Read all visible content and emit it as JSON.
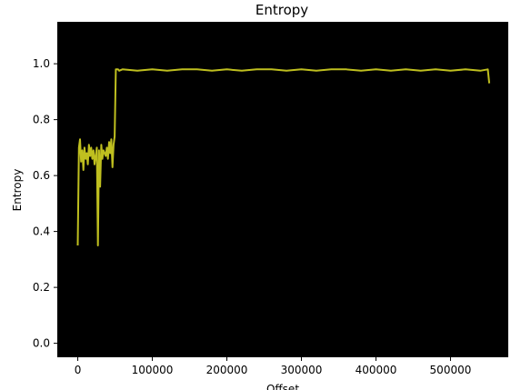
{
  "chart_data": {
    "type": "line",
    "title": "Entropy",
    "xlabel": "Offset",
    "ylabel": "Entropy",
    "xlim": [
      -27500,
      577500
    ],
    "ylim": [
      -0.05,
      1.15
    ],
    "xticks": [
      0,
      100000,
      200000,
      300000,
      400000,
      500000
    ],
    "xtick_labels": [
      "0",
      "100000",
      "200000",
      "300000",
      "400000",
      "500000"
    ],
    "yticks": [
      0.0,
      0.2,
      0.4,
      0.6,
      0.8,
      1.0
    ],
    "ytick_labels": [
      "0.0",
      "0.2",
      "0.4",
      "0.6",
      "0.8",
      "1.0"
    ],
    "background_color": "#000000",
    "line_color": "#bfbf1f",
    "grid": false,
    "series": [
      {
        "x": [
          0,
          1500,
          3000,
          4500,
          6000,
          7500,
          9000,
          10500,
          12000,
          13500,
          15000,
          16500,
          18000,
          19500,
          21000,
          22500,
          24000,
          25500,
          27000,
          28500,
          30000,
          31500,
          33000,
          34500,
          36000,
          37500,
          39000,
          40500,
          42000,
          43500,
          45000,
          46500,
          48000,
          49500,
          51000,
          52500,
          54000,
          55500,
          60000,
          80000,
          100000,
          120000,
          140000,
          160000,
          180000,
          200000,
          220000,
          240000,
          260000,
          280000,
          300000,
          320000,
          340000,
          360000,
          380000,
          400000,
          420000,
          440000,
          460000,
          480000,
          500000,
          520000,
          540000,
          550000,
          552000
        ],
        "y": [
          0.35,
          0.7,
          0.73,
          0.65,
          0.69,
          0.62,
          0.7,
          0.66,
          0.68,
          0.64,
          0.71,
          0.67,
          0.7,
          0.66,
          0.69,
          0.64,
          0.67,
          0.7,
          0.35,
          0.69,
          0.56,
          0.71,
          0.66,
          0.69,
          0.68,
          0.67,
          0.7,
          0.66,
          0.72,
          0.68,
          0.73,
          0.63,
          0.71,
          0.74,
          0.98,
          0.98,
          0.98,
          0.975,
          0.98,
          0.975,
          0.98,
          0.975,
          0.98,
          0.98,
          0.975,
          0.98,
          0.975,
          0.98,
          0.98,
          0.975,
          0.98,
          0.975,
          0.98,
          0.98,
          0.975,
          0.98,
          0.975,
          0.98,
          0.975,
          0.98,
          0.975,
          0.98,
          0.975,
          0.98,
          0.93
        ]
      }
    ]
  }
}
